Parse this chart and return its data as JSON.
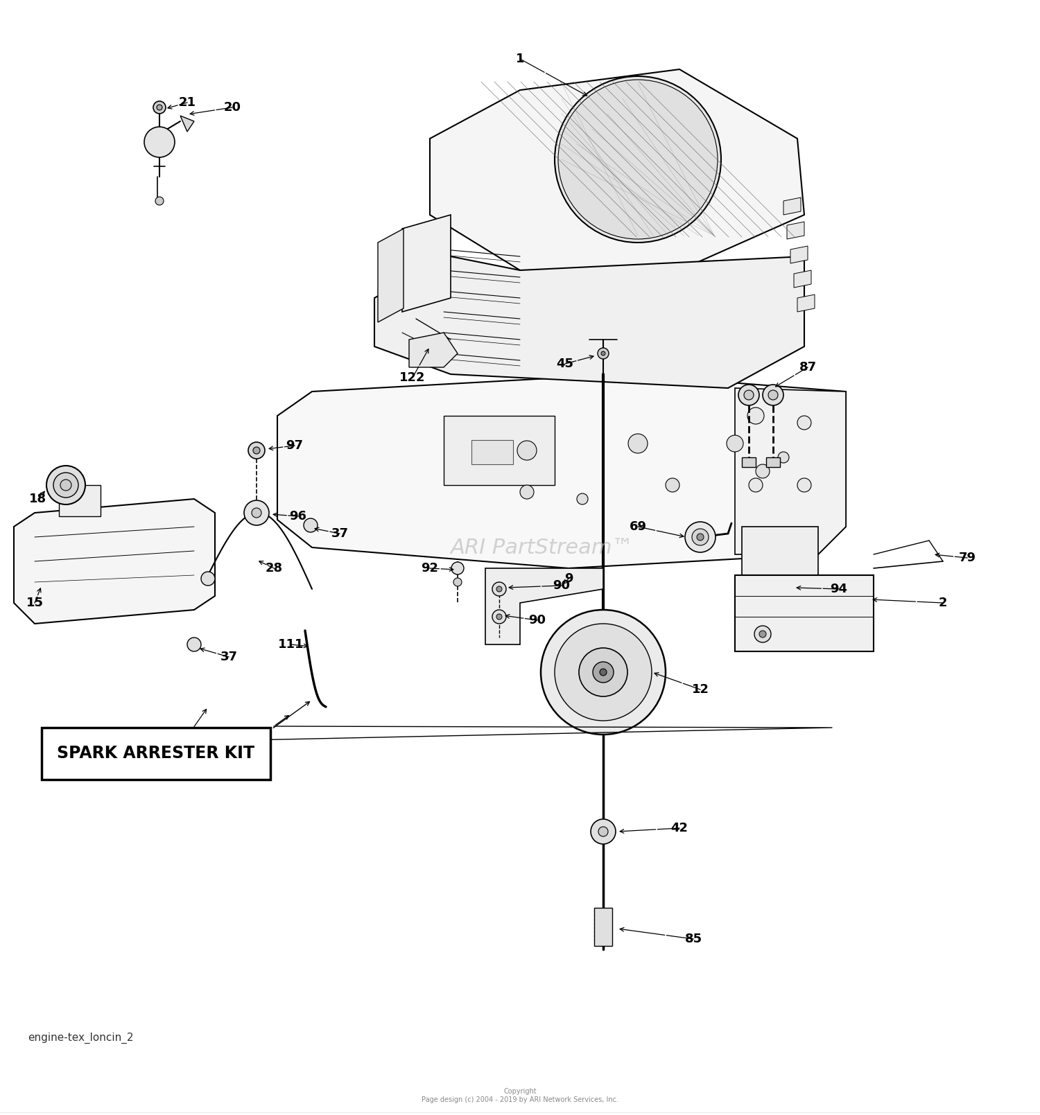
{
  "background_color": "#ffffff",
  "watermark_text": "ARI PartStream™",
  "watermark_color": "#c0c0c0",
  "footer_line1": "Copyright",
  "footer_line2": "Page design (c) 2004 - 2019 by ARI Network Services, Inc.",
  "bottom_label": "engine-tex_loncin_2",
  "spark_box_text": "SPARK ARRESTER KIT",
  "label_color": "#000000",
  "line_color": "#000000"
}
